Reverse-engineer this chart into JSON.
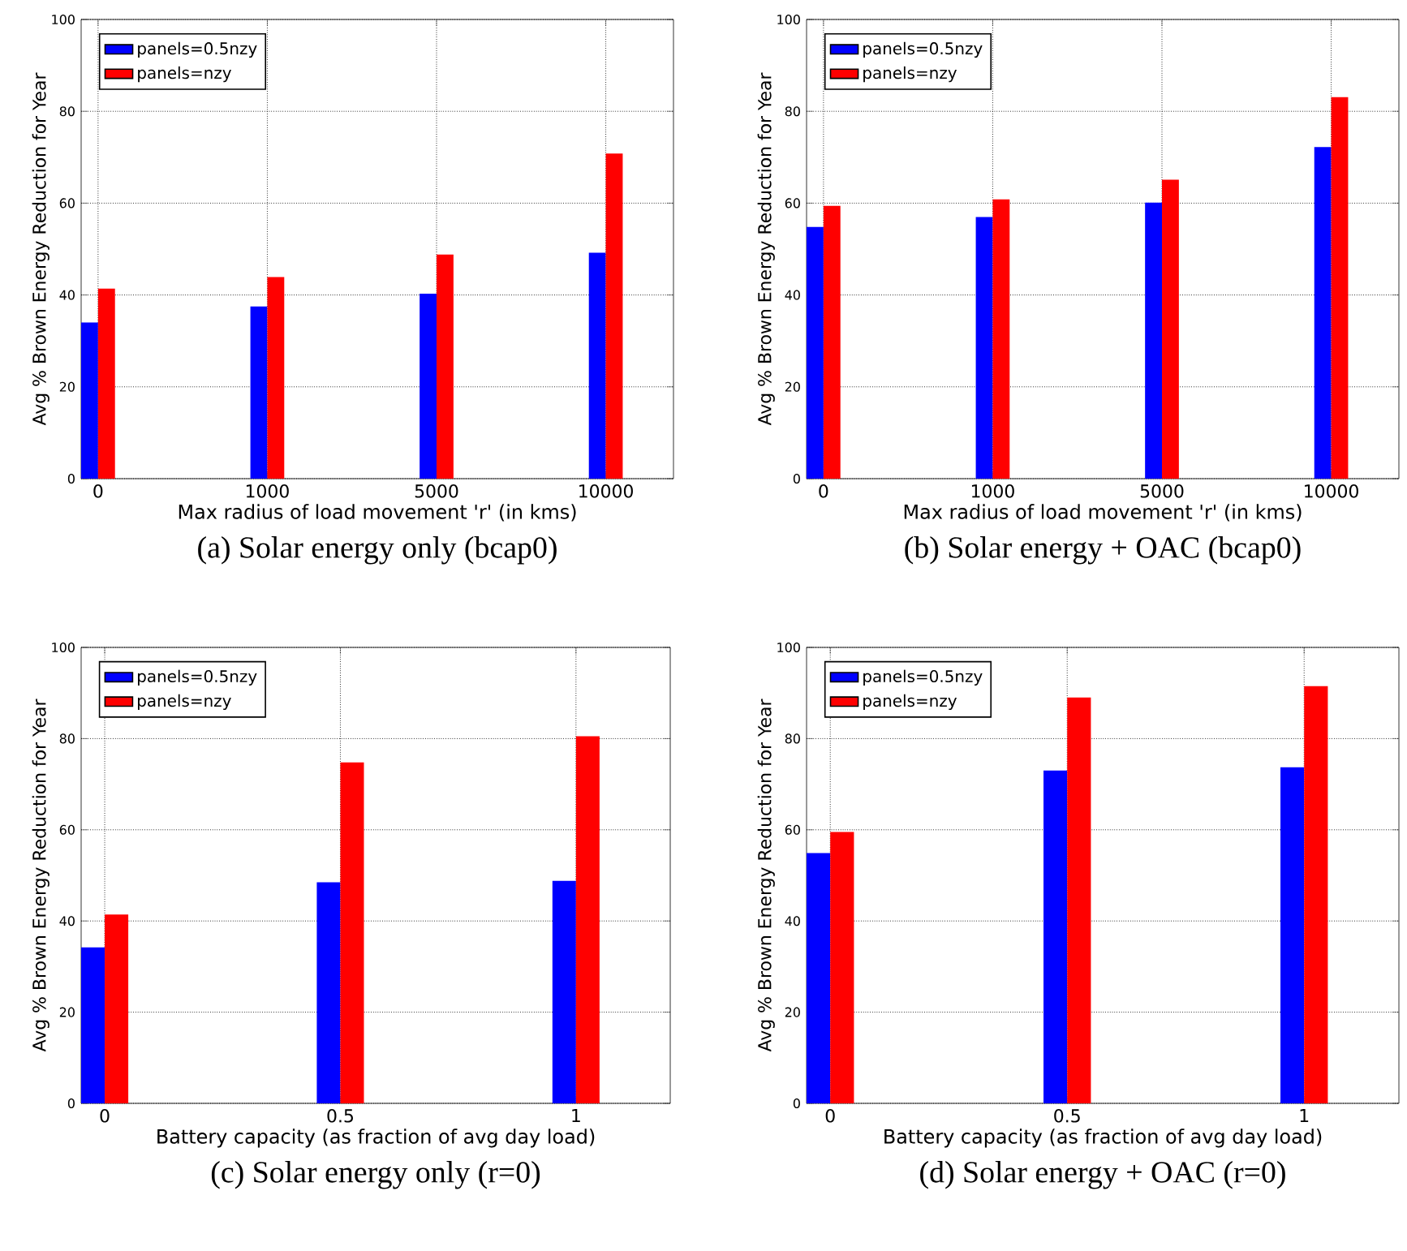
{
  "chart_data": [
    {
      "type": "bar",
      "title": "(a) Solar energy only (bcap0)",
      "xlabel": "Max radius of load movement 'r' (in kms)",
      "ylabel": "Avg % Brown Energy Reduction for Year",
      "categories": [
        "0",
        "1000",
        "5000",
        "10000"
      ],
      "ylim": [
        0,
        100
      ],
      "yticks": [
        0,
        20,
        40,
        60,
        80,
        100
      ],
      "grid": true,
      "legend": "top left",
      "series": [
        {
          "name": "panels=0.5nzy",
          "color": "#0000ff",
          "values": [
            34.0,
            37.5,
            40.3,
            49.2
          ]
        },
        {
          "name": "panels=nzy",
          "color": "#ff0000",
          "values": [
            41.4,
            43.9,
            48.8,
            70.8
          ]
        }
      ]
    },
    {
      "type": "bar",
      "title": "(b) Solar energy + OAC (bcap0)",
      "xlabel": "Max radius of load movement 'r' (in kms)",
      "ylabel": "Avg % Brown Energy Reduction for Year",
      "categories": [
        "0",
        "1000",
        "5000",
        "10000"
      ],
      "ylim": [
        0,
        100
      ],
      "yticks": [
        0,
        20,
        40,
        60,
        80,
        100
      ],
      "grid": true,
      "legend": "top left",
      "series": [
        {
          "name": "panels=0.5nzy",
          "color": "#0000ff",
          "values": [
            54.8,
            57.0,
            60.1,
            72.2
          ]
        },
        {
          "name": "panels=nzy",
          "color": "#ff0000",
          "values": [
            59.4,
            60.8,
            65.1,
            83.1
          ]
        }
      ]
    },
    {
      "type": "bar",
      "title": "(c) Solar energy only (r=0)",
      "xlabel": "Battery capacity (as fraction of avg day load)",
      "ylabel": "Avg % Brown Energy Reduction for Year",
      "categories": [
        "0",
        "0.5",
        "1"
      ],
      "ylim": [
        0,
        100
      ],
      "yticks": [
        0,
        20,
        40,
        60,
        80,
        100
      ],
      "grid": true,
      "legend": "top left",
      "series": [
        {
          "name": "panels=0.5nzy",
          "color": "#0000ff",
          "values": [
            34.2,
            48.5,
            48.8
          ]
        },
        {
          "name": "panels=nzy",
          "color": "#ff0000",
          "values": [
            41.4,
            74.8,
            80.5
          ]
        }
      ]
    },
    {
      "type": "bar",
      "title": "(d) Solar energy + OAC (r=0)",
      "xlabel": "Battery capacity (as fraction of avg day load)",
      "ylabel": "Avg % Brown Energy Reduction for Year",
      "categories": [
        "0",
        "0.5",
        "1"
      ],
      "ylim": [
        0,
        100
      ],
      "yticks": [
        0,
        20,
        40,
        60,
        80,
        100
      ],
      "grid": true,
      "legend": "top left",
      "series": [
        {
          "name": "panels=0.5nzy",
          "color": "#0000ff",
          "values": [
            54.9,
            73.0,
            73.7
          ]
        },
        {
          "name": "panels=nzy",
          "color": "#ff0000",
          "values": [
            59.5,
            89.0,
            91.5
          ]
        }
      ]
    }
  ]
}
